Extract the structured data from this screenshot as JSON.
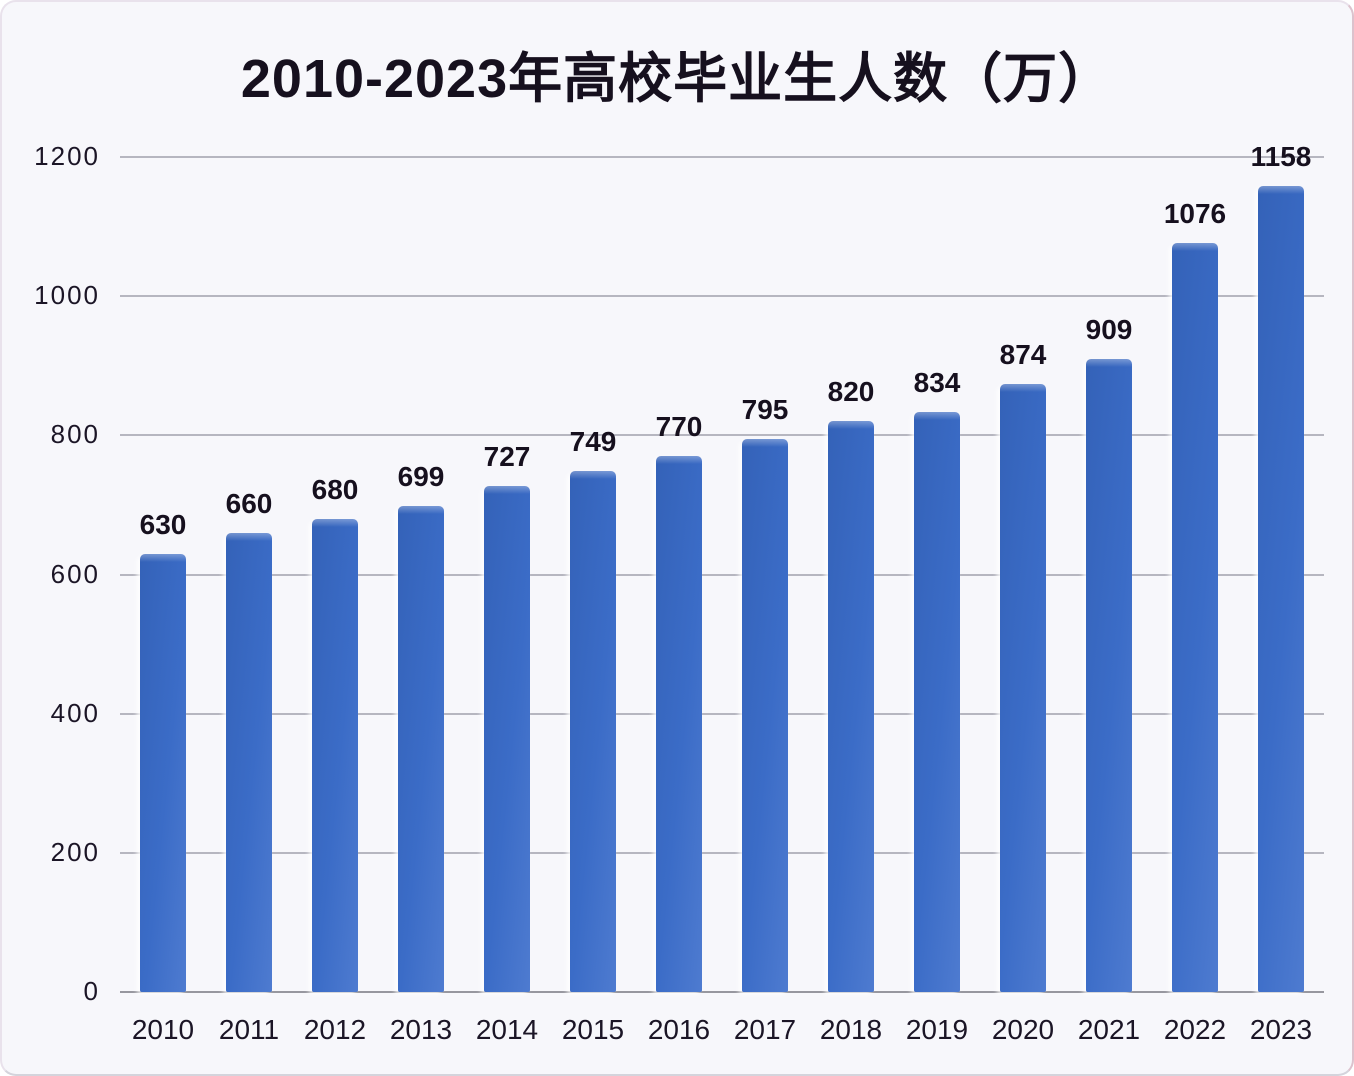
{
  "title": "2010-2023年高校毕业生人数（万）",
  "chart_data": {
    "type": "bar",
    "title": "2010-2023年高校毕业生人数（万）",
    "categories": [
      "2010",
      "2011",
      "2012",
      "2013",
      "2014",
      "2015",
      "2016",
      "2017",
      "2018",
      "2019",
      "2020",
      "2021",
      "2022",
      "2023"
    ],
    "values": [
      630,
      660,
      680,
      699,
      727,
      749,
      770,
      795,
      820,
      834,
      874,
      909,
      1076,
      1158
    ],
    "xlabel": "",
    "ylabel": "",
    "ylim": [
      0,
      1200
    ],
    "yticks": [
      0,
      200,
      400,
      600,
      800,
      1000,
      1200
    ],
    "grid": true,
    "legend": false,
    "bar_color": "#3b6cc7",
    "text_color": "#16101e",
    "gridline_color": "#b6b6c0",
    "background_color": "#f7f7fb"
  }
}
